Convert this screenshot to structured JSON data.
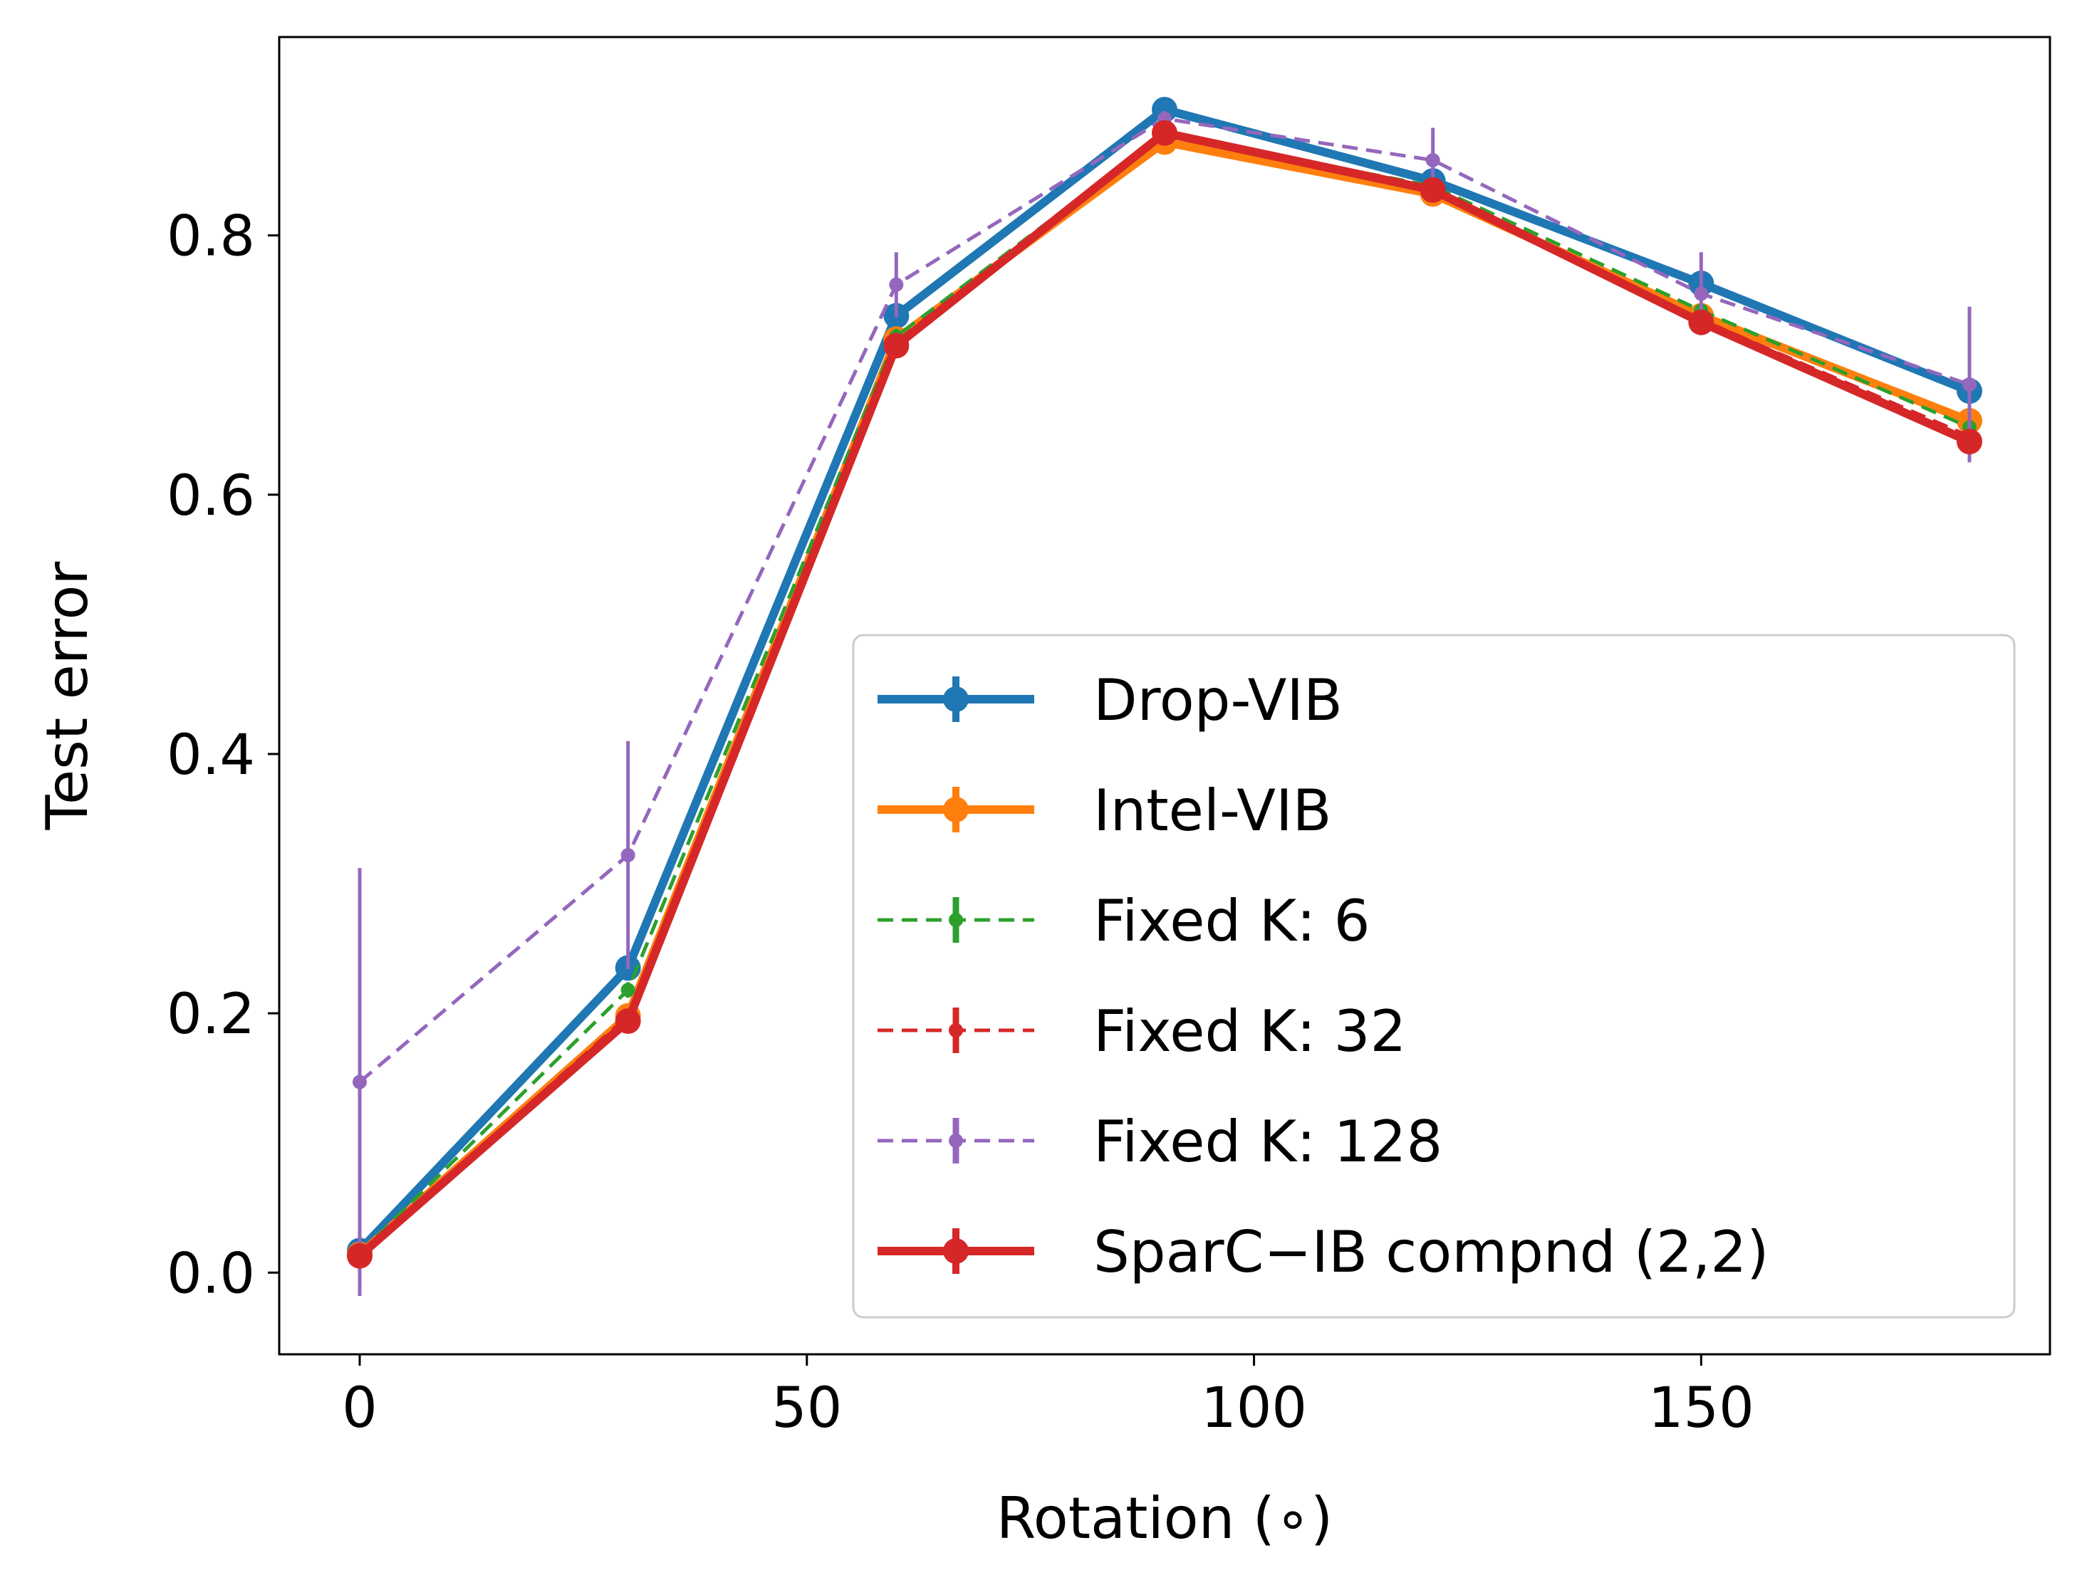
{
  "chart_data": {
    "type": "line",
    "title": "",
    "xlabel": "Rotation (∘)",
    "ylabel": "Test error",
    "xlim": [
      -9,
      189
    ],
    "ylim": [
      -0.063,
      0.953
    ],
    "xticks": [
      0,
      50,
      100,
      150
    ],
    "xtick_labels": [
      "0",
      "50",
      "100",
      "150"
    ],
    "yticks": [
      0.0,
      0.2,
      0.4,
      0.6,
      0.8
    ],
    "ytick_labels": [
      "0.0",
      "0.2",
      "0.4",
      "0.6",
      "0.8"
    ],
    "grid": false,
    "legend_position": "lower-right",
    "x": [
      0,
      30,
      60,
      90,
      120,
      150,
      180
    ],
    "series": [
      {
        "name": "Drop-VIB",
        "color": "#1f77b4",
        "style": "solid",
        "weight": "bold",
        "values": [
          0.017,
          0.235,
          0.738,
          0.897,
          0.842,
          0.763,
          0.68
        ],
        "errors": [
          0.002,
          0.004,
          0.005,
          0.004,
          0.003,
          0.003,
          0.003
        ]
      },
      {
        "name": "Intel-VIB",
        "color": "#ff7f0e",
        "style": "solid",
        "weight": "bold",
        "values": [
          0.014,
          0.198,
          0.72,
          0.872,
          0.832,
          0.738,
          0.657
        ],
        "errors": [
          0.002,
          0.004,
          0.005,
          0.004,
          0.003,
          0.003,
          0.003
        ]
      },
      {
        "name": "Fixed K: 6",
        "color": "#2ca02c",
        "style": "dashed",
        "weight": "thin",
        "values": [
          0.015,
          0.218,
          0.722,
          0.878,
          0.838,
          0.742,
          0.652
        ],
        "errors": [
          0.002,
          0.006,
          0.006,
          0.004,
          0.003,
          0.003,
          0.003
        ]
      },
      {
        "name": "Fixed K: 32",
        "color": "#d62728",
        "style": "dashed",
        "weight": "thin",
        "values": [
          0.013,
          0.198,
          0.718,
          0.88,
          0.836,
          0.735,
          0.645
        ],
        "errors": [
          0.002,
          0.005,
          0.005,
          0.004,
          0.003,
          0.003,
          0.003
        ]
      },
      {
        "name": "Fixed K: 128",
        "color": "#9467bd",
        "style": "dashed",
        "weight": "thin",
        "values": [
          0.147,
          0.322,
          0.762,
          0.89,
          0.858,
          0.755,
          0.685
        ],
        "errors": [
          0.165,
          0.088,
          0.025,
          0.006,
          0.025,
          0.032,
          0.06
        ]
      },
      {
        "name": "SparC−IB compnd (2,2)",
        "color": "#d62728",
        "style": "solid",
        "weight": "bold",
        "values": [
          0.013,
          0.194,
          0.715,
          0.879,
          0.835,
          0.733,
          0.641
        ],
        "errors": [
          0.002,
          0.004,
          0.005,
          0.004,
          0.003,
          0.003,
          0.003
        ]
      }
    ]
  }
}
